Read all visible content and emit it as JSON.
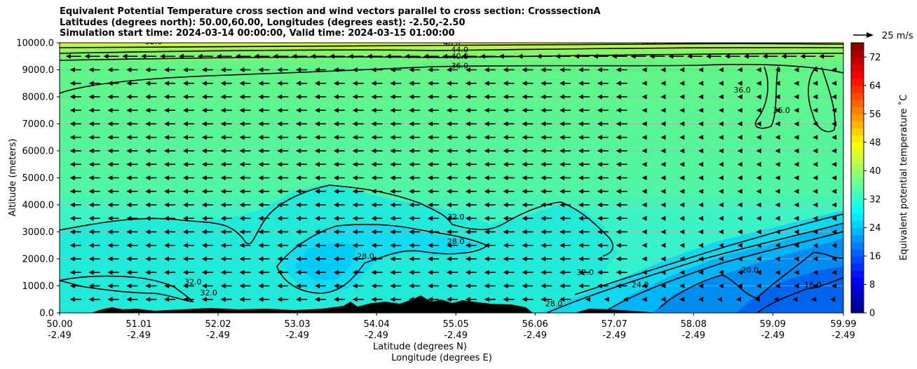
{
  "title_lines": [
    "Equivalent Potential Temperature cross section and wind vectors parallel to cross section: CrosssectionA",
    "Latitudes (degrees north): 50.00,60.00, Longitudes (degrees east): -2.50,-2.50",
    "Simulation start time: 2024-03-14 00:00:00, Valid time: 2024-03-15 01:00:00"
  ],
  "chart_data": {
    "type": "contourf_cross_section",
    "ylabel": "Altitude (meters)",
    "xlabel_lines": [
      "Latitude (degrees N)",
      "Longitude (degrees E)"
    ],
    "ylim": [
      0,
      10000
    ],
    "y_ticks": [
      "0.0",
      "1000.0",
      "2000.0",
      "3000.0",
      "4000.0",
      "5000.0",
      "6000.0",
      "7000.0",
      "8000.0",
      "9000.0",
      "10000.0"
    ],
    "y_tick_values": [
      0,
      1000,
      2000,
      3000,
      4000,
      5000,
      6000,
      7000,
      8000,
      9000,
      10000
    ],
    "xlim": [
      50.0,
      59.99
    ],
    "x_ticks": [
      {
        "lat": "50.00",
        "lon": "-2.49",
        "value": 50.0
      },
      {
        "lat": "51.01",
        "lon": "-2.49",
        "value": 51.01
      },
      {
        "lat": "52.02",
        "lon": "-2.49",
        "value": 52.02
      },
      {
        "lat": "53.03",
        "lon": "-2.49",
        "value": 53.03
      },
      {
        "lat": "54.04",
        "lon": "-2.49",
        "value": 54.04
      },
      {
        "lat": "55.05",
        "lon": "-2.49",
        "value": 55.05
      },
      {
        "lat": "56.06",
        "lon": "-2.49",
        "value": 56.06
      },
      {
        "lat": "57.07",
        "lon": "-2.49",
        "value": 57.07
      },
      {
        "lat": "58.08",
        "lon": "-2.49",
        "value": 58.08
      },
      {
        "lat": "59.09",
        "lon": "-2.49",
        "value": 59.09
      },
      {
        "lat": "59.99",
        "lon": "-2.49",
        "value": 59.99
      }
    ],
    "colorbar": {
      "label": "Equivalent potential temperature ˚C",
      "min": 0,
      "max": 76,
      "tick_labels": [
        "0",
        "8",
        "16",
        "24",
        "32",
        "40",
        "48",
        "56",
        "64",
        "72"
      ],
      "tick_values": [
        0,
        8,
        16,
        24,
        32,
        40,
        48,
        56,
        64,
        72
      ]
    },
    "quiver_key": {
      "label": "25 m/s",
      "value": 25
    },
    "contour_labels": [
      {
        "text": "32.0",
        "lat": 51.2,
        "alt": 9950
      },
      {
        "text": "48.0",
        "lat": 55.0,
        "alt": 9900
      },
      {
        "text": "44.0",
        "lat": 55.1,
        "alt": 9650
      },
      {
        "text": "40.0",
        "lat": 55.1,
        "alt": 9400
      },
      {
        "text": "36.0",
        "lat": 55.1,
        "alt": 9050
      },
      {
        "text": "48.0",
        "lat": 57.5,
        "alt": 9950
      },
      {
        "text": "48.0",
        "lat": 57.8,
        "alt": 9950
      },
      {
        "text": "44.0",
        "lat": 59.0,
        "alt": 9980
      },
      {
        "text": "36.0",
        "lat": 58.7,
        "alt": 8150
      },
      {
        "text": "36.0",
        "lat": 59.2,
        "alt": 7400
      },
      {
        "text": "32.0",
        "lat": 55.05,
        "alt": 3450
      },
      {
        "text": "28.0",
        "lat": 55.05,
        "alt": 2550
      },
      {
        "text": "28.0",
        "lat": 53.9,
        "alt": 2000
      },
      {
        "text": "32.0",
        "lat": 51.7,
        "alt": 1050
      },
      {
        "text": "32.0",
        "lat": 51.9,
        "alt": 650
      },
      {
        "text": "32.0",
        "lat": 56.7,
        "alt": 1400
      },
      {
        "text": "28.0",
        "lat": 56.3,
        "alt": 250
      },
      {
        "text": "24.0",
        "lat": 57.4,
        "alt": 950
      },
      {
        "text": "20.0",
        "lat": 58.8,
        "alt": 1500
      },
      {
        "text": "16.0",
        "lat": 59.6,
        "alt": 950
      }
    ],
    "wind": {
      "direction": "leftward (negative along-section)",
      "arrow_rows_alt": [
        500,
        1000,
        1500,
        2000,
        2500,
        3000,
        3500,
        4000,
        4500,
        5000,
        5500,
        6000,
        6500,
        7000,
        7500,
        8000,
        8500,
        9000,
        9500
      ],
      "arrow_columns_lat_step": 0.24
    }
  }
}
